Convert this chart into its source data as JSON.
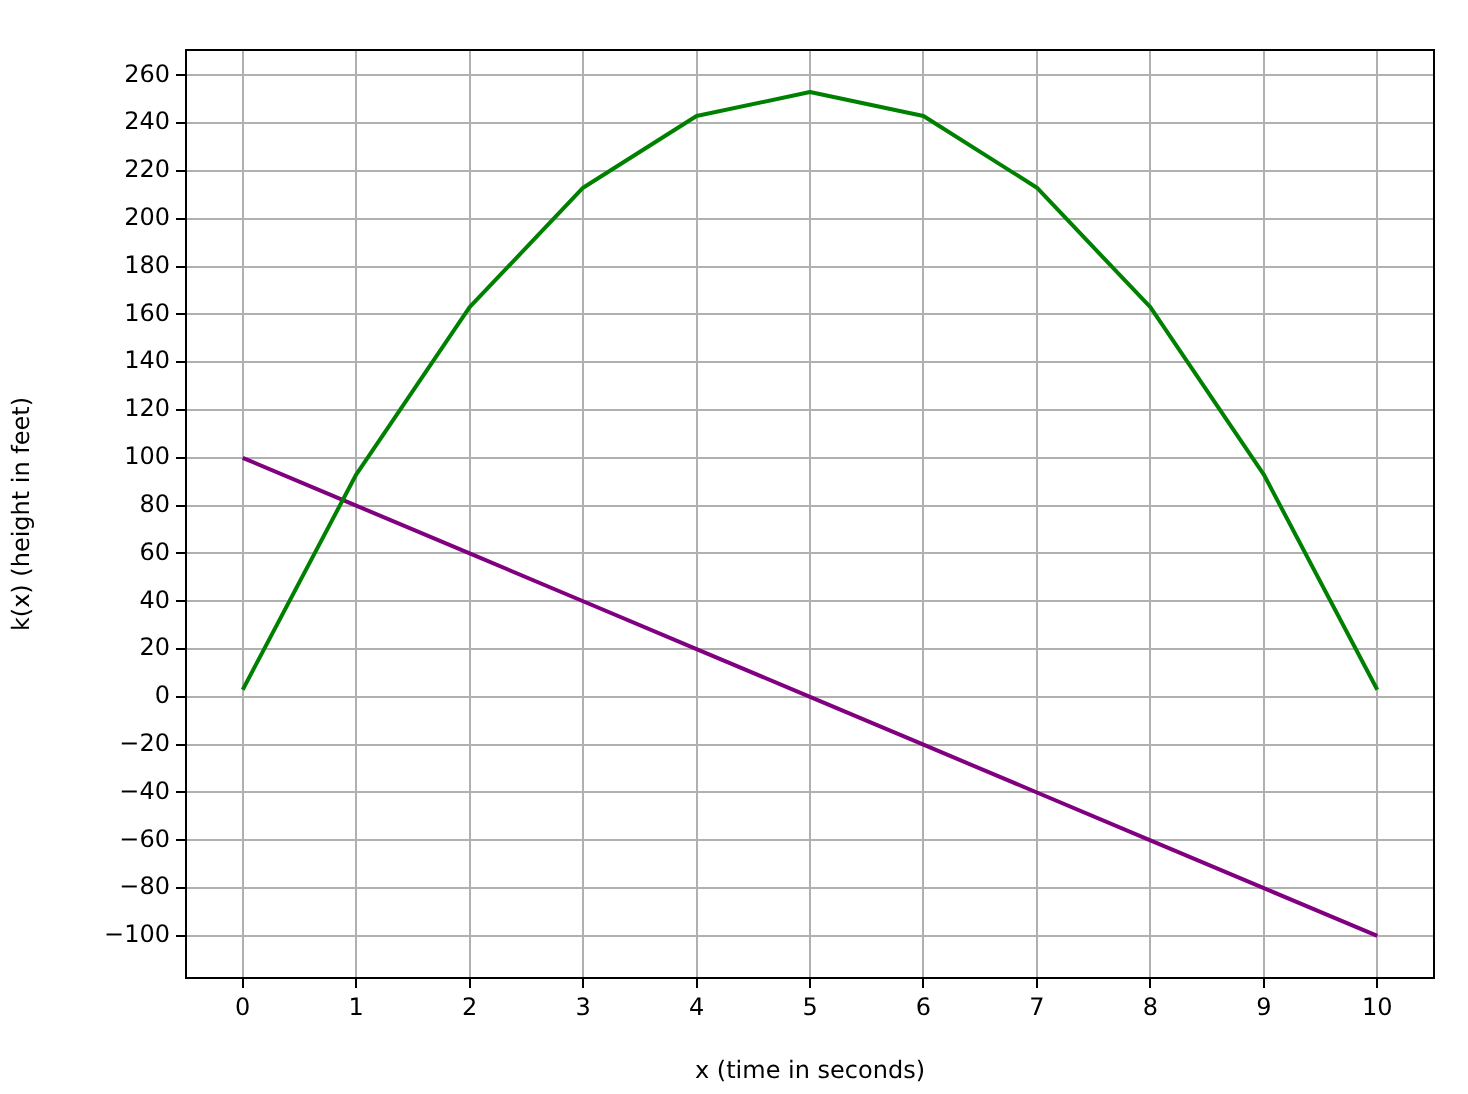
{
  "chart_data": {
    "type": "line",
    "xlabel": "x (time in seconds)",
    "ylabel": "k(x) (height in feet)",
    "x": [
      0,
      1,
      2,
      3,
      4,
      5,
      6,
      7,
      8,
      9,
      10
    ],
    "series": [
      {
        "color": "#008000",
        "values": [
          3,
          93,
          163,
          213,
          243,
          253,
          243,
          213,
          163,
          93,
          3
        ]
      },
      {
        "color": "#800080",
        "values": [
          100,
          80,
          60,
          40,
          20,
          0,
          -20,
          -40,
          -60,
          -80,
          -100
        ]
      }
    ],
    "xlim": [
      -0.5,
      10.5
    ],
    "ylim": [
      -117.6,
      270.6
    ],
    "xticks": [
      0,
      1,
      2,
      3,
      4,
      5,
      6,
      7,
      8,
      9,
      10
    ],
    "yticks": [
      -100,
      -80,
      -60,
      -40,
      -20,
      0,
      20,
      40,
      60,
      80,
      100,
      120,
      140,
      160,
      180,
      200,
      220,
      240,
      260
    ],
    "grid": true,
    "marker": "none",
    "line_style": "solid",
    "legend": false
  }
}
